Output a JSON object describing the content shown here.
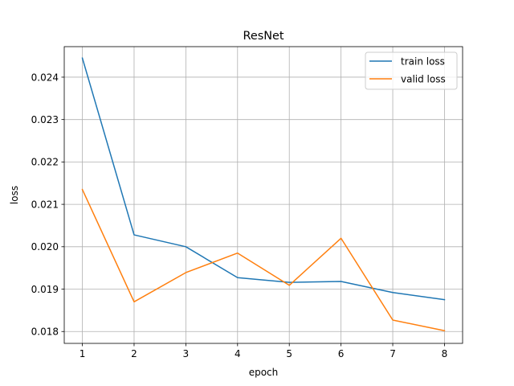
{
  "chart_data": {
    "type": "line",
    "title": "ResNet",
    "xlabel": "epoch",
    "ylabel": "loss",
    "x": [
      1,
      2,
      3,
      4,
      5,
      6,
      7,
      8
    ],
    "xlim": [
      0.65,
      8.35
    ],
    "ylim": [
      0.01772,
      0.02472
    ],
    "x_ticks": [
      1,
      2,
      3,
      4,
      5,
      6,
      7,
      8
    ],
    "x_tick_labels": [
      "1",
      "2",
      "3",
      "4",
      "5",
      "6",
      "7",
      "8"
    ],
    "y_ticks": [
      0.018,
      0.019,
      0.02,
      0.021,
      0.022,
      0.023,
      0.024
    ],
    "y_tick_labels": [
      "0.018",
      "0.019",
      "0.020",
      "0.021",
      "0.022",
      "0.023",
      "0.024"
    ],
    "grid": true,
    "legend_position": "top-right",
    "series": [
      {
        "name": "train loss",
        "color": "#1f77b4",
        "values": [
          0.02445,
          0.02028,
          0.02,
          0.01927,
          0.01916,
          0.01918,
          0.01892,
          0.01875
        ]
      },
      {
        "name": "valid loss",
        "color": "#ff7f0e",
        "values": [
          0.02135,
          0.0187,
          0.01939,
          0.01985,
          0.01909,
          0.0202,
          0.01827,
          0.01802
        ]
      }
    ]
  }
}
